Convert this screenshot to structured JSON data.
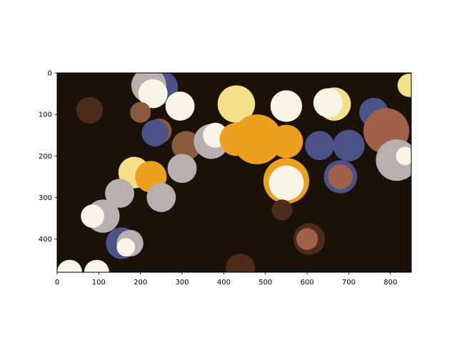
{
  "chart_data": {
    "type": "heatmap",
    "title": "",
    "xlabel": "",
    "ylabel": "",
    "xlim": [
      0,
      850
    ],
    "ylim": [
      480,
      0
    ],
    "y_inverted": true,
    "x_ticks": [
      0,
      100,
      200,
      300,
      400,
      500,
      600,
      700,
      800
    ],
    "y_ticks": [
      0,
      100,
      200,
      300,
      400
    ],
    "grid": false,
    "legend": "none",
    "palette": {
      "background": "#1a1208",
      "dark_brown": "#4a2c18",
      "mid_brown": "#8a5a3e",
      "terracotta": "#a0604a",
      "slate_blue": "#4a5288",
      "gray": "#b8b0ae",
      "orange": "#eca020",
      "pale_yellow": "#f5e08a",
      "cream": "#f8f5e8"
    },
    "blobs": [
      {
        "x": 250,
        "y": 35,
        "r": 40,
        "color": "slate_blue"
      },
      {
        "x": 220,
        "y": 30,
        "r": 42,
        "color": "gray"
      },
      {
        "x": 230,
        "y": 50,
        "r": 35,
        "color": "cream"
      },
      {
        "x": 78,
        "y": 90,
        "r": 32,
        "color": "dark_brown"
      },
      {
        "x": 200,
        "y": 95,
        "r": 25,
        "color": "mid_brown"
      },
      {
        "x": 245,
        "y": 140,
        "r": 30,
        "color": "mid_brown"
      },
      {
        "x": 295,
        "y": 80,
        "r": 35,
        "color": "cream"
      },
      {
        "x": 235,
        "y": 145,
        "r": 32,
        "color": "slate_blue"
      },
      {
        "x": 310,
        "y": 175,
        "r": 35,
        "color": "mid_brown"
      },
      {
        "x": 370,
        "y": 165,
        "r": 42,
        "color": "gray"
      },
      {
        "x": 380,
        "y": 150,
        "r": 30,
        "color": "cream"
      },
      {
        "x": 430,
        "y": 75,
        "r": 45,
        "color": "pale_yellow"
      },
      {
        "x": 480,
        "y": 160,
        "r": 60,
        "color": "orange"
      },
      {
        "x": 430,
        "y": 160,
        "r": 40,
        "color": "orange"
      },
      {
        "x": 550,
        "y": 165,
        "r": 40,
        "color": "orange"
      },
      {
        "x": 550,
        "y": 80,
        "r": 38,
        "color": "cream"
      },
      {
        "x": 630,
        "y": 175,
        "r": 35,
        "color": "slate_blue"
      },
      {
        "x": 665,
        "y": 75,
        "r": 40,
        "color": "pale_yellow"
      },
      {
        "x": 650,
        "y": 72,
        "r": 35,
        "color": "cream"
      },
      {
        "x": 700,
        "y": 175,
        "r": 38,
        "color": "slate_blue"
      },
      {
        "x": 680,
        "y": 250,
        "r": 40,
        "color": "slate_blue"
      },
      {
        "x": 680,
        "y": 250,
        "r": 30,
        "color": "terracotta"
      },
      {
        "x": 760,
        "y": 95,
        "r": 35,
        "color": "slate_blue"
      },
      {
        "x": 790,
        "y": 140,
        "r": 55,
        "color": "terracotta"
      },
      {
        "x": 815,
        "y": 210,
        "r": 50,
        "color": "gray"
      },
      {
        "x": 835,
        "y": 200,
        "r": 22,
        "color": "cream"
      },
      {
        "x": 845,
        "y": 30,
        "r": 28,
        "color": "pale_yellow"
      },
      {
        "x": 550,
        "y": 260,
        "r": 55,
        "color": "orange"
      },
      {
        "x": 550,
        "y": 265,
        "r": 42,
        "color": "cream"
      },
      {
        "x": 540,
        "y": 330,
        "r": 25,
        "color": "dark_brown"
      },
      {
        "x": 185,
        "y": 240,
        "r": 38,
        "color": "pale_yellow"
      },
      {
        "x": 225,
        "y": 250,
        "r": 38,
        "color": "orange"
      },
      {
        "x": 300,
        "y": 230,
        "r": 35,
        "color": "gray"
      },
      {
        "x": 250,
        "y": 300,
        "r": 35,
        "color": "gray"
      },
      {
        "x": 150,
        "y": 290,
        "r": 35,
        "color": "gray"
      },
      {
        "x": 110,
        "y": 345,
        "r": 40,
        "color": "gray"
      },
      {
        "x": 85,
        "y": 345,
        "r": 28,
        "color": "cream"
      },
      {
        "x": 155,
        "y": 410,
        "r": 38,
        "color": "slate_blue"
      },
      {
        "x": 175,
        "y": 410,
        "r": 32,
        "color": "gray"
      },
      {
        "x": 165,
        "y": 420,
        "r": 22,
        "color": "cream"
      },
      {
        "x": 605,
        "y": 400,
        "r": 38,
        "color": "dark_brown"
      },
      {
        "x": 600,
        "y": 400,
        "r": 26,
        "color": "terracotta"
      },
      {
        "x": 440,
        "y": 470,
        "r": 35,
        "color": "dark_brown"
      },
      {
        "x": 30,
        "y": 480,
        "r": 30,
        "color": "cream"
      },
      {
        "x": 95,
        "y": 480,
        "r": 30,
        "color": "cream"
      }
    ]
  }
}
